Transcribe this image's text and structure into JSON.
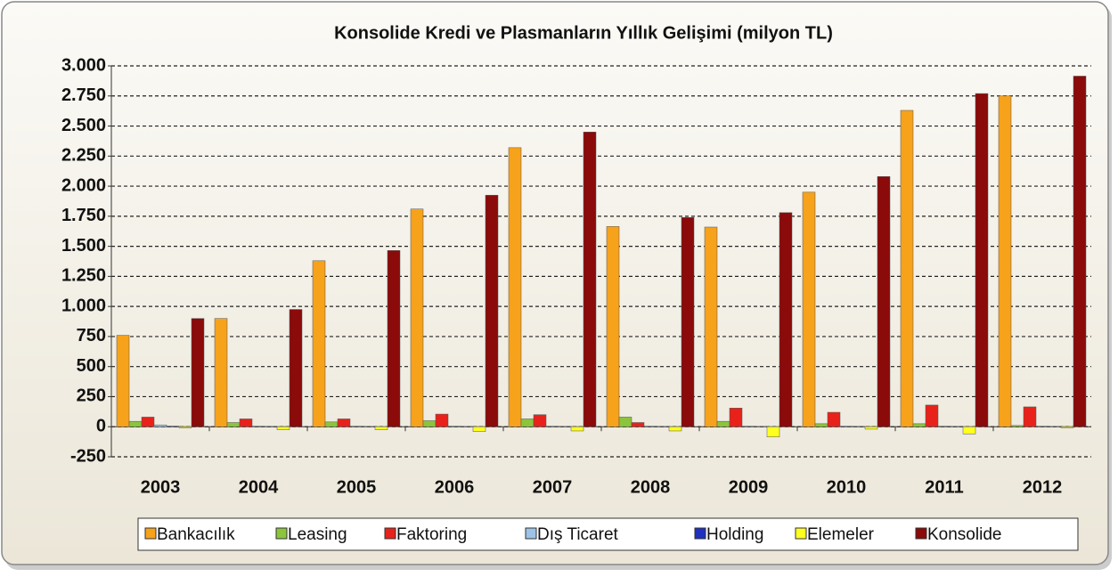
{
  "chart_data": {
    "type": "bar",
    "title": "Konsolide Kredi ve Plasmanların Yıllık Gelişimi (milyon TL)",
    "categories": [
      "2003",
      "2004",
      "2005",
      "2006",
      "2007",
      "2008",
      "2009",
      "2010",
      "2011",
      "2012"
    ],
    "series": [
      {
        "name": "Bankacılık",
        "color": "#f7a21b",
        "values": [
          760,
          900,
          1380,
          1810,
          2320,
          1665,
          1660,
          1950,
          2630,
          2750
        ]
      },
      {
        "name": "Leasing",
        "color": "#8cc43c",
        "values": [
          45,
          35,
          40,
          50,
          65,
          80,
          45,
          25,
          25,
          10
        ]
      },
      {
        "name": "Faktoring",
        "color": "#e8221a",
        "values": [
          80,
          65,
          65,
          105,
          100,
          35,
          155,
          120,
          180,
          165
        ]
      },
      {
        "name": "Dış Ticaret",
        "color": "#9dc3e6",
        "values": [
          15,
          5,
          5,
          5,
          5,
          5,
          5,
          5,
          5,
          5
        ]
      },
      {
        "name": "Holding",
        "color": "#1f2fbf",
        "values": [
          5,
          2,
          2,
          2,
          2,
          2,
          2,
          2,
          2,
          2
        ]
      },
      {
        "name": "Elemeler",
        "color": "#ffff20",
        "values": [
          -10,
          -25,
          -25,
          -40,
          -35,
          -35,
          -85,
          -20,
          -60,
          -10
        ]
      },
      {
        "name": "Konsolide",
        "color": "#8b0a0a",
        "values": [
          900,
          975,
          1465,
          1925,
          2450,
          1740,
          1780,
          2080,
          2770,
          2915
        ]
      }
    ],
    "ylim": [
      -250,
      3000
    ],
    "yticks": [
      -250,
      0,
      250,
      500,
      750,
      {
        "value": 1000,
        "label": "1.000"
      },
      {
        "value": 1250,
        "label": "1.250"
      },
      {
        "value": 1500,
        "label": "1.500"
      },
      {
        "value": 1750,
        "label": "1.750"
      },
      {
        "value": 2000,
        "label": "2.000"
      },
      {
        "value": 2250,
        "label": "2.250"
      },
      {
        "value": 2500,
        "label": "2.500"
      },
      {
        "value": 2750,
        "label": "2.750"
      },
      {
        "value": 3000,
        "label": "3.000"
      }
    ],
    "grid": true,
    "legend": "bottom"
  }
}
